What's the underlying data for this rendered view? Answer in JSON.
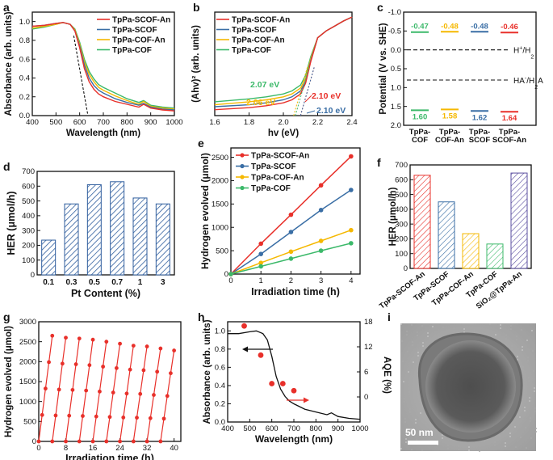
{
  "chart_data": [
    {
      "panel": "a",
      "type": "line",
      "xlabel": "Wavelength (nm)",
      "ylabel": "Absorbance (arb. units)",
      "xlim": [
        400,
        1000
      ],
      "ylim": [
        0.0,
        1.1
      ],
      "xticks": [
        "400",
        "500",
        "600",
        "700",
        "800",
        "900",
        "1000"
      ],
      "yticks": [
        "0.0",
        "0.2",
        "0.4",
        "0.6",
        "0.8",
        "1.0"
      ],
      "series": [
        {
          "name": "TpPa-SCOF-An",
          "color": "#e8302a",
          "x": [
            400,
            450,
            500,
            530,
            560,
            580,
            600,
            620,
            640,
            660,
            680,
            700,
            750,
            800,
            850,
            870,
            900,
            950,
            1000
          ],
          "y": [
            0.95,
            0.96,
            0.98,
            0.99,
            0.97,
            0.9,
            0.72,
            0.5,
            0.36,
            0.28,
            0.23,
            0.2,
            0.15,
            0.12,
            0.09,
            0.12,
            0.08,
            0.06,
            0.05
          ]
        },
        {
          "name": "TpPa-SCOF",
          "color": "#3a6ea5",
          "x": [
            400,
            450,
            500,
            530,
            560,
            580,
            600,
            620,
            640,
            660,
            680,
            700,
            750,
            800,
            850,
            870,
            900,
            950,
            1000
          ],
          "y": [
            0.95,
            0.96,
            0.98,
            0.99,
            0.97,
            0.9,
            0.74,
            0.54,
            0.4,
            0.32,
            0.27,
            0.24,
            0.18,
            0.14,
            0.11,
            0.13,
            0.09,
            0.07,
            0.06
          ]
        },
        {
          "name": "TpPa-COF-An",
          "color": "#f5b800",
          "x": [
            400,
            450,
            500,
            530,
            560,
            580,
            600,
            620,
            640,
            660,
            680,
            700,
            750,
            800,
            850,
            870,
            900,
            950,
            1000
          ],
          "y": [
            0.93,
            0.95,
            0.97,
            0.99,
            0.97,
            0.91,
            0.76,
            0.57,
            0.44,
            0.36,
            0.3,
            0.27,
            0.21,
            0.16,
            0.12,
            0.15,
            0.1,
            0.08,
            0.07
          ]
        },
        {
          "name": "TpPa-COF",
          "color": "#3cb96a",
          "x": [
            400,
            450,
            500,
            530,
            560,
            580,
            600,
            620,
            640,
            660,
            680,
            700,
            750,
            800,
            850,
            870,
            900,
            950,
            1000
          ],
          "y": [
            0.92,
            0.94,
            0.97,
            0.99,
            0.97,
            0.92,
            0.78,
            0.6,
            0.47,
            0.39,
            0.33,
            0.3,
            0.24,
            0.18,
            0.14,
            0.16,
            0.11,
            0.09,
            0.08
          ]
        }
      ],
      "tangent": {
        "x": [
          575,
          635
        ],
        "y": [
          0.85,
          0.0
        ]
      }
    },
    {
      "panel": "b",
      "type": "line",
      "xlabel": "hv (eV)",
      "ylabel": "(Ahv)² (arb. units)",
      "xlim": [
        1.6,
        2.4
      ],
      "ylim": [
        0,
        1
      ],
      "xticks": [
        "1.6",
        "1.8",
        "2.0",
        "2.2",
        "2.4"
      ],
      "series": [
        {
          "name": "TpPa-SCOF-An",
          "color": "#e8302a",
          "x": [
            1.6,
            1.8,
            1.9,
            2.0,
            2.05,
            2.1,
            2.13,
            2.16,
            2.2,
            2.25,
            2.3,
            2.35,
            2.4
          ],
          "y": [
            0.06,
            0.08,
            0.1,
            0.13,
            0.16,
            0.22,
            0.33,
            0.55,
            0.79,
            0.86,
            0.91,
            0.96,
            1.0
          ]
        },
        {
          "name": "TpPa-SCOF",
          "color": "#3a6ea5",
          "x": [
            1.6,
            1.8,
            1.9,
            2.0,
            2.05,
            2.1,
            2.13,
            2.16,
            2.2,
            2.25,
            2.3,
            2.35,
            2.4
          ],
          "y": [
            0.09,
            0.11,
            0.13,
            0.16,
            0.19,
            0.25,
            0.35,
            0.56,
            0.79,
            0.86,
            0.91,
            0.96,
            1.0
          ]
        },
        {
          "name": "TpPa-COF-An",
          "color": "#f5b800",
          "x": [
            1.6,
            1.8,
            1.9,
            2.0,
            2.05,
            2.1,
            2.13,
            2.16,
            2.2,
            2.25,
            2.3,
            2.35,
            2.4
          ],
          "y": [
            0.11,
            0.14,
            0.16,
            0.19,
            0.22,
            0.28,
            0.38,
            0.58,
            0.79,
            0.86,
            0.91,
            0.96,
            1.0
          ]
        },
        {
          "name": "TpPa-COF",
          "color": "#3cb96a",
          "x": [
            1.6,
            1.8,
            1.9,
            2.0,
            2.05,
            2.1,
            2.13,
            2.16,
            2.2,
            2.25,
            2.3,
            2.35,
            2.4
          ],
          "y": [
            0.14,
            0.17,
            0.19,
            0.22,
            0.25,
            0.31,
            0.41,
            0.6,
            0.79,
            0.86,
            0.91,
            0.96,
            1.0
          ]
        }
      ],
      "annotations": [
        {
          "text": "2.07 eV",
          "color": "#3cb96a"
        },
        {
          "text": "2.06 eV",
          "color": "#f5b800"
        },
        {
          "text": "2.10 eV",
          "color": "#e8302a"
        },
        {
          "text": "2.10 eV",
          "color": "#3a6ea5"
        }
      ]
    },
    {
      "panel": "c",
      "type": "band",
      "ylabel": "Potential (V vs. SHE)",
      "ylim": [
        -1.0,
        2.0
      ],
      "yticks": [
        "-1.0",
        "-0.5",
        "0.0",
        "0.5",
        "1.0",
        "1.5",
        "2.0"
      ],
      "categories": [
        "TpPa-\nCOF",
        "TpPa-\nCOF-An",
        "TpPa-\nSCOF",
        "TpPa-\nSCOF-An"
      ],
      "cb": [
        -0.47,
        -0.48,
        -0.48,
        -0.46
      ],
      "vb": [
        1.6,
        1.58,
        1.62,
        1.64
      ],
      "cb_labels": [
        "-0.47",
        "-0.48",
        "-0.48",
        "-0.46"
      ],
      "vb_labels": [
        "1.60",
        "1.58",
        "1.62",
        "1.64"
      ],
      "colors": [
        "#3cb96a",
        "#f5b800",
        "#3a6ea5",
        "#e8302a"
      ],
      "reference_lines": [
        {
          "y": 0.0,
          "label_main": "H",
          "label_sup": "+",
          "label_tail": "/H",
          "label_sub": "2"
        },
        {
          "y": 0.8,
          "label_main": "HA",
          "label_sup": "-",
          "label_tail": "/H",
          "label_sub": "2",
          "label_end": "A"
        }
      ]
    },
    {
      "panel": "d",
      "type": "bar",
      "xlabel": "Pt Content (%)",
      "ylabel": "HER (μmol/h)",
      "categories": [
        "0.1",
        "0.3",
        "0.5",
        "0.7",
        "1",
        "3"
      ],
      "values": [
        235,
        480,
        610,
        630,
        520,
        480
      ],
      "ylim": [
        0,
        700
      ],
      "yticks": [
        "0",
        "100",
        "200",
        "300",
        "400",
        "500",
        "600",
        "700"
      ],
      "color": "#2f5e9e"
    },
    {
      "panel": "e",
      "type": "line",
      "xlabel": "Irradiation time (h)",
      "ylabel": "Hydrogen evolved (μmol)",
      "xlim": [
        0,
        4.3
      ],
      "ylim": [
        0,
        2700
      ],
      "xticks": [
        "0",
        "1",
        "2",
        "3",
        "4"
      ],
      "yticks": [
        "0",
        "500",
        "1000",
        "1500",
        "2000",
        "2500"
      ],
      "series": [
        {
          "name": "TpPa-SCOF-An",
          "color": "#e8302a",
          "x": [
            0,
            1,
            2,
            3,
            4
          ],
          "y": [
            0,
            650,
            1270,
            1900,
            2520
          ]
        },
        {
          "name": "TpPa-SCOF",
          "color": "#3a6ea5",
          "x": [
            0,
            1,
            2,
            3,
            4
          ],
          "y": [
            0,
            430,
            900,
            1370,
            1800
          ]
        },
        {
          "name": "TpPa-COF-An",
          "color": "#f5b800",
          "x": [
            0,
            1,
            2,
            3,
            4
          ],
          "y": [
            0,
            240,
            480,
            710,
            940
          ]
        },
        {
          "name": "TpPa-COF",
          "color": "#3cb96a",
          "x": [
            0,
            1,
            2,
            3,
            4
          ],
          "y": [
            0,
            165,
            330,
            500,
            660
          ]
        }
      ]
    },
    {
      "panel": "f",
      "type": "bar",
      "ylabel": "HER (μmol/h)",
      "categories": [
        "TpPa-SCOF-An",
        "TpPa-SCOF",
        "TpPa-COF-An",
        "TpPa-COF",
        "SiO₂@TpPa-An"
      ],
      "values": [
        630,
        450,
        235,
        165,
        645
      ],
      "ylim": [
        0,
        700
      ],
      "yticks": [
        "0",
        "100",
        "200",
        "300",
        "400",
        "500",
        "600",
        "700"
      ],
      "colors": [
        "#e8302a",
        "#3a6ea5",
        "#f5b800",
        "#3cb96a",
        "#5b4fa0"
      ]
    },
    {
      "panel": "g",
      "type": "scatter-line",
      "xlabel": "Irradiation time (h)",
      "ylabel": "Hydrogen evolved (μmol)",
      "xlim": [
        0,
        42
      ],
      "ylim": [
        0,
        3000
      ],
      "xticks": [
        "0",
        "8",
        "16",
        "24",
        "32",
        "40"
      ],
      "yticks": [
        "0",
        "500",
        "1000",
        "1500",
        "2000",
        "2500",
        "3000"
      ],
      "color": "#e8302a",
      "cycle_peaks": [
        2650,
        2600,
        2580,
        2550,
        2500,
        2450,
        2400,
        2380,
        2330,
        2280
      ]
    },
    {
      "panel": "h",
      "type": "line+scatter",
      "xlabel": "Wavelength (nm)",
      "ylabel": "Absorbance (arb. units)",
      "ylabel2": "AQE (%)",
      "xlim": [
        400,
        1000
      ],
      "ylim": [
        0,
        1.1
      ],
      "y2lim": [
        -6,
        18
      ],
      "xticks": [
        "400",
        "500",
        "600",
        "700",
        "800",
        "900",
        "1000"
      ],
      "yticks": [
        "0.0",
        "0.2",
        "0.4",
        "0.6",
        "0.8",
        "1.0"
      ],
      "y2ticks": [
        "0",
        "6",
        "12",
        "18"
      ],
      "absorbance": {
        "x": [
          400,
          450,
          500,
          530,
          560,
          580,
          600,
          620,
          640,
          660,
          680,
          700,
          750,
          800,
          850,
          870,
          900,
          950,
          1000
        ],
        "y": [
          0.97,
          0.97,
          0.99,
          1.0,
          0.97,
          0.9,
          0.72,
          0.5,
          0.36,
          0.28,
          0.23,
          0.2,
          0.14,
          0.11,
          0.08,
          0.1,
          0.06,
          0.04,
          0.03
        ]
      },
      "aqe": {
        "x": [
          475,
          550,
          600,
          650,
          700
        ],
        "y": [
          17.0,
          10.0,
          3.2,
          3.2,
          1.5
        ]
      }
    },
    {
      "panel": "i",
      "type": "image",
      "scale_bar": "50 nm"
    }
  ],
  "panel_labels": [
    "a",
    "b",
    "c",
    "d",
    "e",
    "f",
    "g",
    "h",
    "i"
  ]
}
